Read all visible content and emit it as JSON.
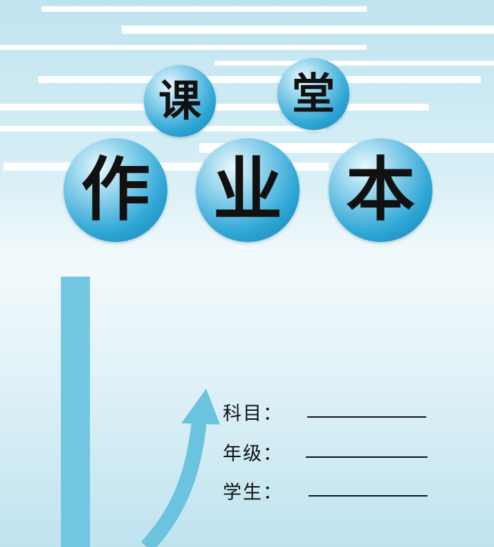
{
  "title": {
    "top": [
      "课",
      "堂"
    ],
    "bottom": [
      "作",
      "业",
      "本"
    ]
  },
  "form": {
    "fields": [
      {
        "label": "科目：",
        "value": ""
      },
      {
        "label": "年级：",
        "value": ""
      },
      {
        "label": "学生：",
        "value": ""
      }
    ]
  },
  "colors": {
    "bubble": "#2fa7d6",
    "accent_bar": "#73c6e2",
    "background": "#d7eff6"
  }
}
